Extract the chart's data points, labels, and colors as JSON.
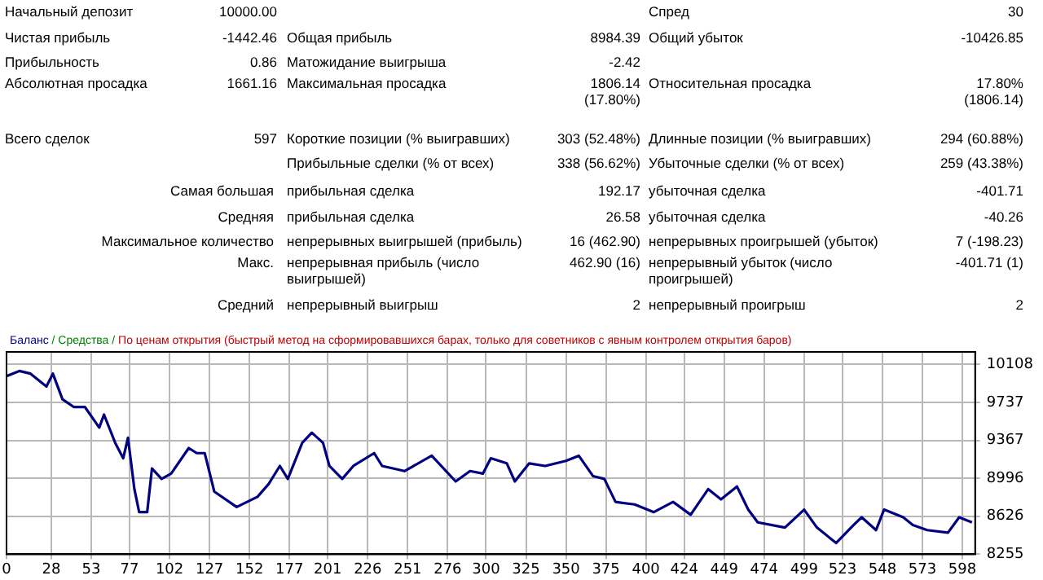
{
  "chart_data": {
    "type": "line",
    "title": "По ценам открытия (быстрый метод на сформировавшихся барах, только для советников с явным контролем открытия баров)",
    "annotations": [
      "/ Средства /",
      "Начальный депозит",
      "10000.00",
      "Спред",
      "30",
      "Чистая прибыль",
      "-1442.46",
      "Общая прибыль",
      "8984.39",
      "Общий убыток",
      "-10426.85",
      "Прибыльность",
      "0.86",
      "Матожидание выигрыша",
      "-2.42",
      "Абсолютная просадка",
      "1661.16",
      "Максимальная просадка",
      "1806.14\n(17.80%)",
      "Относительная просадка",
      "17.80%\n(1806.14)",
      "Всего сделок",
      "597",
      "Короткие позиции (% выигравших)",
      "303 (52.48%)",
      "Длинные позиции (% выигравших)",
      "294 (60.88%)",
      "Прибыльные сделки (% от всех)",
      "338 (56.62%)",
      "Убыточные сделки (% от всех)",
      "259 (43.38%)",
      "Самая большая",
      "прибыльная сделка",
      "192.17",
      "убыточная сделка",
      "-401.71",
      "Средняя",
      "прибыльная сделка",
      "26.58",
      "убыточная сделка",
      "-40.26",
      "Максимальное количество",
      "непрерывных выигрышей (прибыль)",
      "16 (462.90)",
      "непрерывных проигрышей (убыток)",
      "7 (-198.23)",
      "Макс.",
      "непрерывная прибыль (число выигрышей)",
      "462.90 (16)",
      "непрерывный убыток (число проигрышей)",
      "-401.71 (1)",
      "Средний",
      "непрерывный выигрыш",
      "2",
      "непрерывный проигрыш",
      "2"
    ],
    "series": [
      {
        "name": "Баланс",
        "color": "#000080",
        "x": [
          0,
          8,
          15,
          25,
          29,
          35,
          42,
          49,
          58,
          61,
          68,
          73,
          76,
          80,
          83,
          88,
          91,
          97,
          103,
          114,
          119,
          124,
          130,
          144,
          157,
          164,
          171,
          176,
          185,
          191,
          198,
          202,
          210,
          217,
          230,
          235,
          249,
          266,
          281,
          290,
          298,
          303,
          313,
          318,
          327,
          337,
          350,
          358,
          367,
          374,
          381,
          393,
          405,
          417,
          428,
          439,
          447,
          457,
          464,
          470,
          487,
          499,
          507,
          519,
          530,
          535,
          544,
          549,
          561,
          567,
          576,
          589,
          596,
          604
        ],
        "values": [
          9994,
          10044,
          10018,
          9893,
          10018,
          9768,
          9693,
          9693,
          9492,
          9618,
          9342,
          9192,
          9392,
          8891,
          8666,
          8666,
          9092,
          8991,
          9042,
          9292,
          9242,
          9242,
          8866,
          8716,
          8816,
          8941,
          9117,
          8991,
          9342,
          9442,
          9342,
          9117,
          8991,
          9117,
          9242,
          9117,
          9067,
          9217,
          8966,
          9067,
          9042,
          9192,
          9142,
          8966,
          9142,
          9117,
          9167,
          9217,
          9017,
          8991,
          8766,
          8741,
          8666,
          8766,
          8641,
          8891,
          8791,
          8916,
          8691,
          8566,
          8516,
          8691,
          8516,
          8365,
          8541,
          8616,
          8491,
          8691,
          8616,
          8541,
          8491,
          8466,
          8616,
          8566
        ]
      }
    ],
    "xlim": [
      0,
      606
    ],
    "xticks": [
      0,
      28,
      53,
      77,
      102,
      127,
      152,
      177,
      201,
      226,
      251,
      276,
      300,
      325,
      350,
      375,
      400,
      424,
      449,
      474,
      499,
      523,
      548,
      573,
      598
    ],
    "ylim": [
      8255,
      10230
    ],
    "yticks": [
      8255,
      8626,
      8996,
      9367,
      9737,
      10108
    ],
    "grid": true,
    "legend": "top left",
    "marker": "none",
    "line_style": "solid"
  }
}
